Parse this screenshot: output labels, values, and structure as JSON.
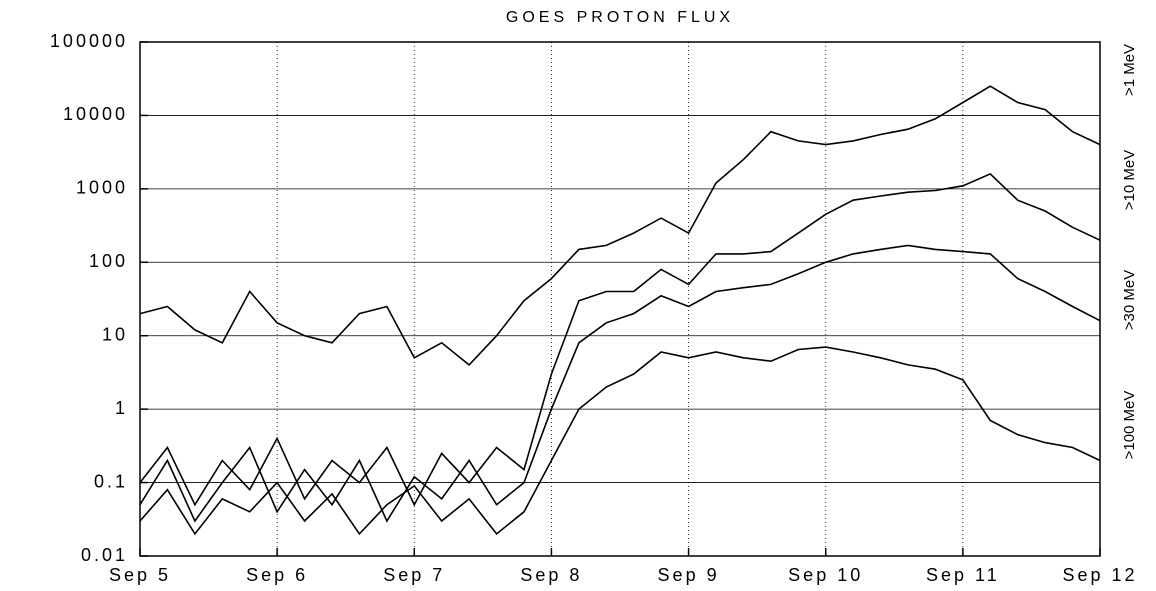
{
  "chart_data": {
    "type": "line",
    "title": "GOES PROTON FLUX",
    "x": [
      5.0,
      5.2,
      5.4,
      5.6,
      5.8,
      6.0,
      6.2,
      6.4,
      6.6,
      6.8,
      7.0,
      7.2,
      7.4,
      7.6,
      7.8,
      8.0,
      8.2,
      8.4,
      8.6,
      8.8,
      9.0,
      9.2,
      9.4,
      9.6,
      9.8,
      10.0,
      10.2,
      10.4,
      10.6,
      10.8,
      11.0,
      11.2,
      11.4,
      11.6,
      11.8,
      12.0
    ],
    "series": [
      {
        "name": ">1 MeV",
        "color": "#000000",
        "values": [
          20,
          25,
          12,
          8,
          40,
          15,
          10,
          8,
          20,
          25,
          5,
          8,
          4,
          10,
          30,
          60,
          150,
          170,
          250,
          400,
          250,
          1200,
          2500,
          6000,
          4500,
          4000,
          4500,
          5500,
          6500,
          9000,
          15000,
          25000,
          15000,
          12000,
          6000,
          4000
        ]
      },
      {
        "name": ">10 MeV",
        "color": "#000000",
        "values": [
          0.1,
          0.3,
          0.05,
          0.2,
          0.08,
          0.4,
          0.06,
          0.2,
          0.1,
          0.3,
          0.05,
          0.25,
          0.1,
          0.3,
          0.15,
          3,
          30,
          40,
          40,
          80,
          50,
          130,
          130,
          140,
          250,
          450,
          700,
          800,
          900,
          950,
          1100,
          1600,
          700,
          500,
          300,
          200
        ]
      },
      {
        "name": ">30 MeV",
        "color": "#000000",
        "values": [
          0.05,
          0.2,
          0.03,
          0.1,
          0.3,
          0.04,
          0.15,
          0.05,
          0.2,
          0.03,
          0.12,
          0.06,
          0.2,
          0.05,
          0.1,
          1,
          8,
          15,
          20,
          35,
          25,
          40,
          45,
          50,
          70,
          100,
          130,
          150,
          170,
          150,
          140,
          130,
          60,
          40,
          25,
          16
        ]
      },
      {
        "name": ">100 MeV",
        "color": "#000000",
        "values": [
          0.03,
          0.08,
          0.02,
          0.06,
          0.04,
          0.1,
          0.03,
          0.07,
          0.02,
          0.05,
          0.09,
          0.03,
          0.06,
          0.02,
          0.04,
          0.2,
          1,
          2,
          3,
          6,
          5,
          6,
          5,
          4.5,
          6.5,
          7,
          6,
          5,
          4,
          3.5,
          2.5,
          0.7,
          0.45,
          0.35,
          0.3,
          0.2
        ]
      }
    ],
    "log_y": true,
    "ylim": [
      0.01,
      100000
    ],
    "yticks": [
      0.01,
      0.1,
      1,
      10,
      100,
      1000,
      10000,
      100000
    ],
    "xlim": [
      5,
      12
    ],
    "xticks": [
      {
        "value": 5,
        "label": "Sep 5"
      },
      {
        "value": 6,
        "label": "Sep 6"
      },
      {
        "value": 7,
        "label": "Sep 7"
      },
      {
        "value": 8,
        "label": "Sep 8"
      },
      {
        "value": 9,
        "label": "Sep 9"
      },
      {
        "value": 10,
        "label": "Sep 10"
      },
      {
        "value": 11,
        "label": "Sep 11"
      },
      {
        "value": 12,
        "label": "Sep 12"
      }
    ],
    "grid": true
  }
}
